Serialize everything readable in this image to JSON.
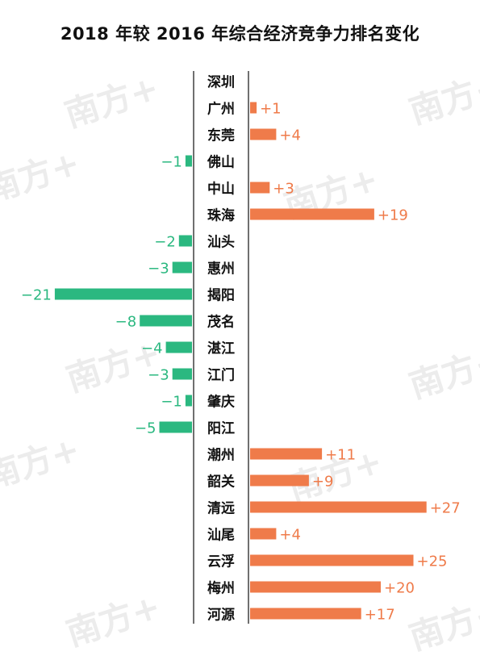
{
  "watermark_text": "南方+",
  "chart_data": {
    "type": "bar",
    "orientation": "horizontal",
    "title": "2018 年较 2016 年综合经济竞争力排名变化",
    "categories": [
      "深圳",
      "广州",
      "东莞",
      "佛山",
      "中山",
      "珠海",
      "汕头",
      "惠州",
      "揭阳",
      "茂名",
      "湛江",
      "江门",
      "肇庆",
      "阳江",
      "潮州",
      "韶关",
      "清远",
      "汕尾",
      "云浮",
      "梅州",
      "河源"
    ],
    "values": [
      0,
      1,
      4,
      -1,
      3,
      19,
      -2,
      -3,
      -21,
      -8,
      -4,
      -3,
      -1,
      -5,
      11,
      9,
      27,
      4,
      25,
      20,
      17
    ],
    "value_labels": [
      "",
      "+1",
      "+4",
      "−1",
      "+3",
      "+19",
      "−2",
      "−3",
      "−21",
      "−8",
      "−4",
      "−3",
      "−1",
      "−5",
      "+11",
      "+9",
      "+27",
      "+4",
      "+25",
      "+20",
      "+17"
    ],
    "colors": {
      "positive": "#ef7b4a",
      "negative": "#2bb880",
      "axis": "#222222",
      "label": "#111111"
    },
    "grid": false,
    "legend": "none"
  }
}
